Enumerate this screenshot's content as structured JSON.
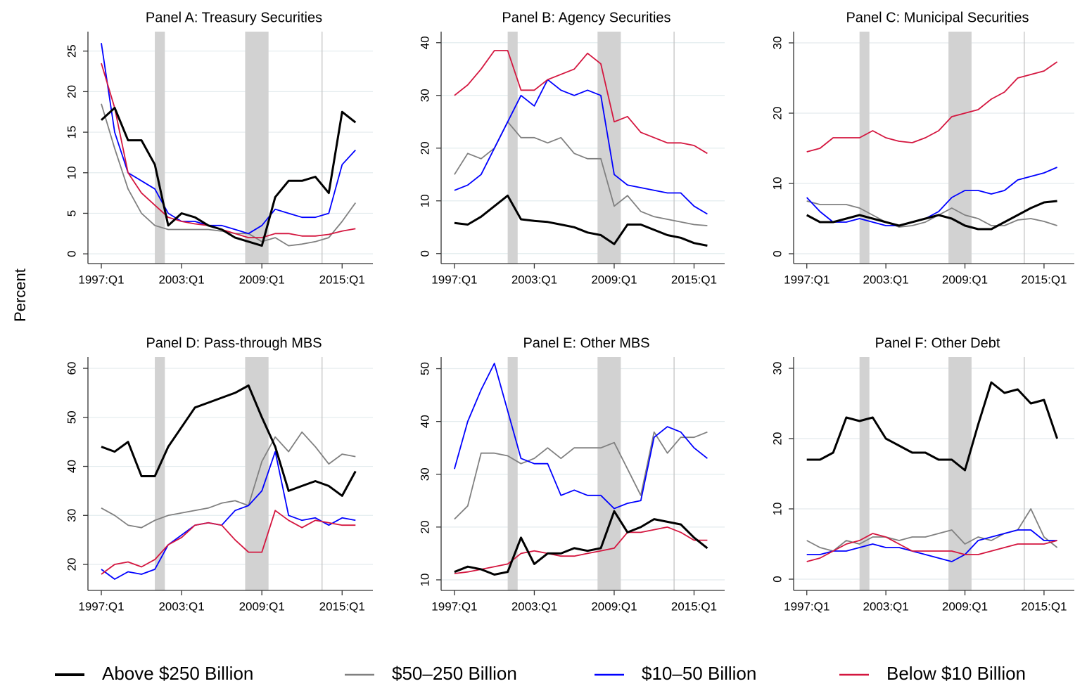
{
  "ylabel": "Percent",
  "shading": {
    "recessions": [
      [
        2001,
        2001.75
      ],
      [
        2007.75,
        2009.5
      ]
    ],
    "reference_line": 2013.5
  },
  "legend": {
    "position": "bottom",
    "entries": [
      {
        "name": "Above $250 Billion",
        "color": "#000000"
      },
      {
        "name": "$50–250 Billion",
        "color": "#808080"
      },
      {
        "name": "$10–50 Billion",
        "color": "#0000ff"
      },
      {
        "name": "Below $10 Billion",
        "color": "#d4163f"
      }
    ]
  },
  "chart_data": [
    {
      "type": "line",
      "title": "Panel A: Treasury Securities",
      "grid": true,
      "x": [
        1997,
        1998,
        1999,
        2000,
        2001,
        2002,
        2003,
        2004,
        2005,
        2006,
        2007,
        2008,
        2009,
        2010,
        2011,
        2012,
        2013,
        2014,
        2015,
        2016
      ],
      "xlim": [
        1996,
        2017.3
      ],
      "ylim": [
        -1.2,
        27.4
      ],
      "xticks": [
        {
          "value": 1997,
          "label": "1997:Q1"
        },
        {
          "value": 2003,
          "label": "2003:Q1"
        },
        {
          "value": 2009,
          "label": "2009:Q1"
        },
        {
          "value": 2015,
          "label": "2015:Q1"
        }
      ],
      "yticks": [
        0,
        5,
        10,
        15,
        20,
        25
      ],
      "series": [
        {
          "values": [
            16.5,
            18,
            14,
            14,
            11,
            3.5,
            5,
            4.5,
            3.5,
            3,
            2,
            1.5,
            1,
            7,
            9,
            9,
            9.5,
            7.5,
            17.5,
            16.2
          ]
        },
        {
          "values": [
            18.5,
            13,
            8,
            5,
            3.5,
            3,
            3,
            3,
            3,
            2.8,
            2.5,
            2.5,
            1.5,
            2,
            1,
            1.2,
            1.5,
            2,
            4,
            6.3
          ]
        },
        {
          "values": [
            26,
            15,
            10,
            9,
            8,
            5,
            4,
            4,
            3.5,
            3.5,
            3,
            2.5,
            3.5,
            5.5,
            5,
            4.5,
            4.5,
            5,
            11,
            12.8
          ]
        },
        {
          "values": [
            23.5,
            18,
            10,
            7.5,
            6,
            4.5,
            4,
            3.7,
            3.5,
            3,
            2.5,
            2,
            2,
            2.5,
            2.5,
            2.2,
            2.2,
            2.4,
            2.8,
            3.1
          ]
        }
      ]
    },
    {
      "type": "line",
      "title": "Panel B: Agency Securities",
      "grid": true,
      "x": [
        1997,
        1998,
        1999,
        2000,
        2001,
        2002,
        2003,
        2004,
        2005,
        2006,
        2007,
        2008,
        2009,
        2010,
        2011,
        2012,
        2013,
        2014,
        2015,
        2016
      ],
      "xlim": [
        1996,
        2017.3
      ],
      "ylim": [
        -1.9,
        42.1
      ],
      "xticks": [
        {
          "value": 1997,
          "label": "1997:Q1"
        },
        {
          "value": 2003,
          "label": "2003:Q1"
        },
        {
          "value": 2009,
          "label": "2009:Q1"
        },
        {
          "value": 2015,
          "label": "2015:Q1"
        }
      ],
      "yticks": [
        0,
        10,
        20,
        30,
        40
      ],
      "series": [
        {
          "values": [
            5.8,
            5.5,
            7,
            9,
            11,
            6.5,
            6.2,
            6,
            5.5,
            5,
            4,
            3.5,
            1.8,
            5.5,
            5.5,
            4.5,
            3.5,
            3,
            2,
            1.5
          ]
        },
        {
          "values": [
            15,
            19,
            18,
            20,
            25,
            22,
            22,
            21,
            22,
            19,
            18,
            18,
            9,
            11,
            8,
            7,
            6.5,
            6,
            5.5,
            5.3
          ]
        },
        {
          "values": [
            12,
            13,
            15,
            20,
            25,
            30,
            28,
            33,
            31,
            30,
            31,
            30,
            15,
            13,
            12.5,
            12,
            11.5,
            11.5,
            9,
            7.5
          ]
        },
        {
          "values": [
            30,
            32,
            35,
            38.5,
            38.5,
            31,
            31,
            33,
            34,
            35,
            38,
            36,
            25,
            26,
            23,
            22,
            21,
            21,
            20.5,
            19
          ]
        }
      ]
    },
    {
      "type": "line",
      "title": "Panel C: Municipal Securities",
      "grid": true,
      "x": [
        1997,
        1998,
        1999,
        2000,
        2001,
        2002,
        2003,
        2004,
        2005,
        2006,
        2007,
        2008,
        2009,
        2010,
        2011,
        2012,
        2013,
        2014,
        2015,
        2016
      ],
      "xlim": [
        1996,
        2017.3
      ],
      "ylim": [
        -1.4,
        31.6
      ],
      "xticks": [
        {
          "value": 1997,
          "label": "1997:Q1"
        },
        {
          "value": 2003,
          "label": "2003:Q1"
        },
        {
          "value": 2009,
          "label": "2009:Q1"
        },
        {
          "value": 2015,
          "label": "2015:Q1"
        }
      ],
      "yticks": [
        0,
        10,
        20,
        30
      ],
      "series": [
        {
          "values": [
            5.5,
            4.5,
            4.5,
            5,
            5.5,
            5,
            4.5,
            4,
            4.5,
            5,
            5.5,
            5,
            4,
            3.5,
            3.5,
            4.5,
            5.5,
            6.5,
            7.3,
            7.5
          ]
        },
        {
          "values": [
            7.5,
            7,
            7,
            7,
            6.5,
            5.5,
            4.5,
            3.8,
            4,
            4.5,
            5.5,
            6.5,
            5.5,
            5,
            4,
            4,
            4.8,
            5,
            4.6,
            4
          ]
        },
        {
          "values": [
            8,
            6,
            4.5,
            4.5,
            5,
            4.5,
            4,
            4,
            4.5,
            5,
            6,
            8,
            9,
            9,
            8.5,
            9,
            10.5,
            11,
            11.5,
            12.3
          ]
        },
        {
          "values": [
            14.5,
            15,
            16.5,
            16.5,
            16.5,
            17.5,
            16.5,
            16,
            15.8,
            16.5,
            17.5,
            19.5,
            20,
            20.5,
            22,
            23,
            25,
            25.5,
            26,
            27.3
          ]
        }
      ]
    },
    {
      "type": "line",
      "title": "Panel D: Pass-through MBS",
      "grid": true,
      "x": [
        1997,
        1998,
        1999,
        2000,
        2001,
        2002,
        2003,
        2004,
        2005,
        2006,
        2007,
        2008,
        2009,
        2010,
        2011,
        2012,
        2013,
        2014,
        2015,
        2016
      ],
      "xlim": [
        1996,
        2017.3
      ],
      "ylim": [
        14.7,
        62.3
      ],
      "xticks": [
        {
          "value": 1997,
          "label": "1997:Q1"
        },
        {
          "value": 2003,
          "label": "2003:Q1"
        },
        {
          "value": 2009,
          "label": "2009:Q1"
        },
        {
          "value": 2015,
          "label": "2015:Q1"
        }
      ],
      "yticks": [
        20,
        30,
        40,
        50,
        60
      ],
      "series": [
        {
          "values": [
            44,
            43,
            45,
            38,
            38,
            44,
            48,
            52,
            53,
            54,
            55,
            56.5,
            50,
            44,
            35,
            36,
            37,
            36,
            34,
            39
          ]
        },
        {
          "values": [
            31.5,
            30,
            28,
            27.5,
            29,
            30,
            30.5,
            31,
            31.5,
            32.5,
            33,
            32,
            41,
            46,
            43,
            47,
            44,
            40.5,
            42.5,
            42
          ]
        },
        {
          "values": [
            19,
            17,
            18.5,
            18,
            19,
            24,
            26,
            28,
            28.5,
            28,
            31,
            32,
            35,
            43,
            30,
            29,
            29.5,
            28,
            29.5,
            29
          ]
        },
        {
          "values": [
            18,
            20,
            20.5,
            19.5,
            21,
            24,
            25.5,
            28,
            28.5,
            28,
            25,
            22.5,
            22.5,
            31,
            29,
            27.5,
            29,
            28.5,
            28,
            28
          ]
        }
      ]
    },
    {
      "type": "line",
      "title": "Panel E: Other MBS",
      "grid": true,
      "x": [
        1997,
        1998,
        1999,
        2000,
        2001,
        2002,
        2003,
        2004,
        2005,
        2006,
        2007,
        2008,
        2009,
        2010,
        2011,
        2012,
        2013,
        2014,
        2015,
        2016
      ],
      "xlim": [
        1996,
        2017.3
      ],
      "ylim": [
        8,
        52.2
      ],
      "xticks": [
        {
          "value": 1997,
          "label": "1997:Q1"
        },
        {
          "value": 2003,
          "label": "2003:Q1"
        },
        {
          "value": 2009,
          "label": "2009:Q1"
        },
        {
          "value": 2015,
          "label": "2015:Q1"
        }
      ],
      "yticks": [
        10,
        20,
        30,
        40,
        50
      ],
      "series": [
        {
          "values": [
            11.5,
            12.5,
            12,
            11,
            11.5,
            18,
            13,
            15,
            15,
            16,
            15.5,
            16,
            23,
            19,
            20,
            21.5,
            21,
            20.5,
            18,
            16
          ]
        },
        {
          "values": [
            21.5,
            24,
            34,
            34,
            33.5,
            32,
            33,
            35,
            33,
            35,
            35,
            35,
            36,
            31,
            26,
            38,
            34,
            37,
            37,
            38
          ]
        },
        {
          "values": [
            31,
            40,
            46,
            51,
            42,
            33,
            32,
            32,
            26,
            27,
            26,
            26,
            23.5,
            24.5,
            25,
            37,
            39,
            38,
            35,
            33
          ]
        },
        {
          "values": [
            11.2,
            11.5,
            12,
            12.5,
            13,
            15,
            15.5,
            15,
            14.5,
            14.5,
            15,
            15.5,
            16,
            19,
            19,
            19.5,
            20,
            19,
            17.5,
            17.5
          ]
        }
      ]
    },
    {
      "type": "line",
      "title": "Panel F: Other Debt",
      "grid": true,
      "x": [
        1997,
        1998,
        1999,
        2000,
        2001,
        2002,
        2003,
        2004,
        2005,
        2006,
        2007,
        2008,
        2009,
        2010,
        2011,
        2012,
        2013,
        2014,
        2015,
        2016
      ],
      "xlim": [
        1996,
        2017.3
      ],
      "ylim": [
        -1.6,
        31.6
      ],
      "xticks": [
        {
          "value": 1997,
          "label": "1997:Q1"
        },
        {
          "value": 2003,
          "label": "2003:Q1"
        },
        {
          "value": 2009,
          "label": "2009:Q1"
        },
        {
          "value": 2015,
          "label": "2015:Q1"
        }
      ],
      "yticks": [
        0,
        10,
        20,
        30
      ],
      "series": [
        {
          "values": [
            17,
            17,
            18,
            23,
            22.5,
            23,
            20,
            19,
            18,
            18,
            17,
            17,
            15.5,
            22,
            28,
            26.5,
            27,
            25,
            25.5,
            20
          ]
        },
        {
          "values": [
            5.5,
            4.5,
            4,
            5.5,
            5,
            6,
            6,
            5.5,
            6,
            6,
            6.5,
            7,
            5,
            6,
            5.5,
            6.5,
            7,
            10,
            6,
            4.5
          ]
        },
        {
          "values": [
            3.5,
            3.5,
            4,
            4,
            4.5,
            5,
            4.5,
            4.5,
            4,
            3.5,
            3,
            2.5,
            3.5,
            5.5,
            6,
            6.5,
            7,
            7,
            5.5,
            5.5
          ]
        },
        {
          "values": [
            2.5,
            3,
            4,
            5,
            5.5,
            6.5,
            6,
            5,
            4,
            4,
            4,
            4,
            3.5,
            3.5,
            4,
            4.5,
            5,
            5,
            5,
            5.5
          ]
        }
      ]
    }
  ]
}
